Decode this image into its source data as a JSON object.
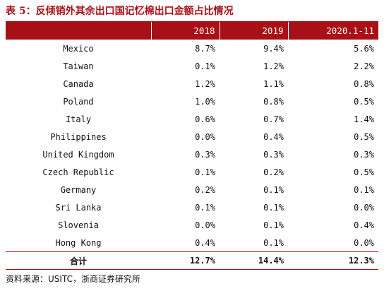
{
  "title": "表 5：反倾销外其余出口国记忆棉出口金额占比情况",
  "table": {
    "headers": [
      "",
      "2018",
      "2019",
      "2020.1-11"
    ],
    "rows": [
      [
        "Mexico",
        "8.7%",
        "9.4%",
        "5.6%"
      ],
      [
        "Taiwan",
        "0.1%",
        "1.2%",
        "2.2%"
      ],
      [
        "Canada",
        "1.2%",
        "1.1%",
        "0.8%"
      ],
      [
        "Poland",
        "1.0%",
        "0.8%",
        "0.5%"
      ],
      [
        "Italy",
        "0.6%",
        "0.7%",
        "1.4%"
      ],
      [
        "Philippines",
        "0.0%",
        "0.4%",
        "0.5%"
      ],
      [
        "United Kingdom",
        "0.3%",
        "0.3%",
        "0.3%"
      ],
      [
        "Czech Republic",
        "0.1%",
        "0.2%",
        "0.5%"
      ],
      [
        "Germany",
        "0.2%",
        "0.1%",
        "0.1%"
      ],
      [
        "Sri Lanka",
        "0.1%",
        "0.1%",
        "0.0%"
      ],
      [
        "Slovenia",
        "0.0%",
        "0.1%",
        "0.4%"
      ],
      [
        "Hong Kong",
        "0.4%",
        "0.1%",
        "0.0%"
      ]
    ],
    "total": [
      "合计",
      "12.7%",
      "14.4%",
      "12.3%"
    ]
  },
  "source": "资料来源：USITC，浙商证券研究所",
  "colors": {
    "accent": "#a80f16",
    "header_text": "#ffffff"
  }
}
